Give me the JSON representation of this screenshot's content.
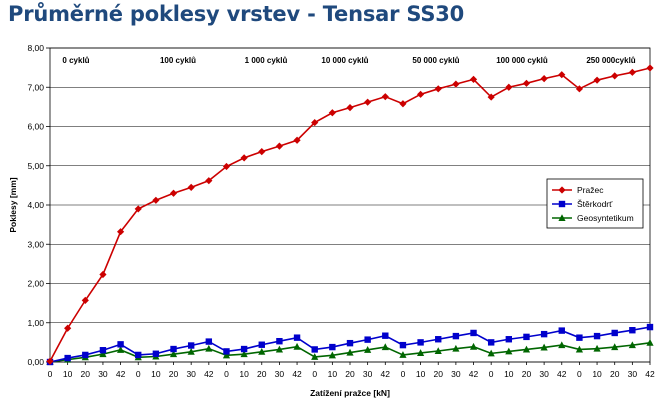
{
  "chart_data": {
    "type": "line",
    "title": "Průměrné poklesy vrstev - Tensar SS30",
    "xlabel": "Zatížení pražce [kN]",
    "ylabel": "Poklesy [mm]",
    "ylim": [
      0,
      8
    ],
    "y_ticks": [
      "0,00",
      "1,00",
      "2,00",
      "3,00",
      "4,00",
      "5,00",
      "6,00",
      "7,00",
      "8,00"
    ],
    "grid": true,
    "legend_position": "right",
    "categories": [
      "0",
      "10",
      "20",
      "30",
      "42",
      "0",
      "10",
      "20",
      "30",
      "42",
      "0",
      "10",
      "20",
      "30",
      "42",
      "0",
      "10",
      "20",
      "30",
      "42",
      "0",
      "10",
      "20",
      "30",
      "42",
      "0",
      "10",
      "20",
      "30",
      "42",
      "0",
      "10",
      "20",
      "30",
      "42"
    ],
    "groups": [
      "0 cyklů",
      "100 cyklů",
      "1 000 cyklů",
      "10 000 cyklů",
      "50 000 cyklů",
      "100 000 cyklů",
      "250 000cyklů"
    ],
    "series": [
      {
        "name": "Pražec",
        "color": "#cc0000",
        "marker": "diamond",
        "values": [
          0.02,
          0.86,
          1.57,
          2.23,
          3.32,
          3.9,
          4.12,
          4.3,
          4.45,
          4.62,
          4.98,
          5.2,
          5.36,
          5.5,
          5.65,
          6.1,
          6.35,
          6.48,
          6.62,
          6.76,
          6.58,
          6.82,
          6.96,
          7.08,
          7.2,
          6.75,
          7.0,
          7.1,
          7.22,
          7.32,
          6.96,
          7.18,
          7.29,
          7.38,
          7.49
        ]
      },
      {
        "name": "Štěrkodrť",
        "color": "#0000cc",
        "marker": "square",
        "values": [
          0.0,
          0.1,
          0.18,
          0.3,
          0.45,
          0.18,
          0.21,
          0.33,
          0.42,
          0.52,
          0.27,
          0.33,
          0.44,
          0.53,
          0.62,
          0.32,
          0.38,
          0.48,
          0.57,
          0.67,
          0.43,
          0.5,
          0.58,
          0.66,
          0.74,
          0.5,
          0.58,
          0.64,
          0.71,
          0.8,
          0.62,
          0.66,
          0.74,
          0.81,
          0.89
        ]
      },
      {
        "name": "Geosyntetikum",
        "color": "#006600",
        "marker": "triangle",
        "values": [
          0.0,
          0.06,
          0.12,
          0.2,
          0.31,
          0.12,
          0.14,
          0.2,
          0.26,
          0.34,
          0.17,
          0.2,
          0.26,
          0.32,
          0.39,
          0.13,
          0.17,
          0.24,
          0.31,
          0.38,
          0.18,
          0.23,
          0.28,
          0.34,
          0.39,
          0.22,
          0.27,
          0.32,
          0.37,
          0.43,
          0.32,
          0.34,
          0.38,
          0.43,
          0.49
        ]
      }
    ]
  }
}
